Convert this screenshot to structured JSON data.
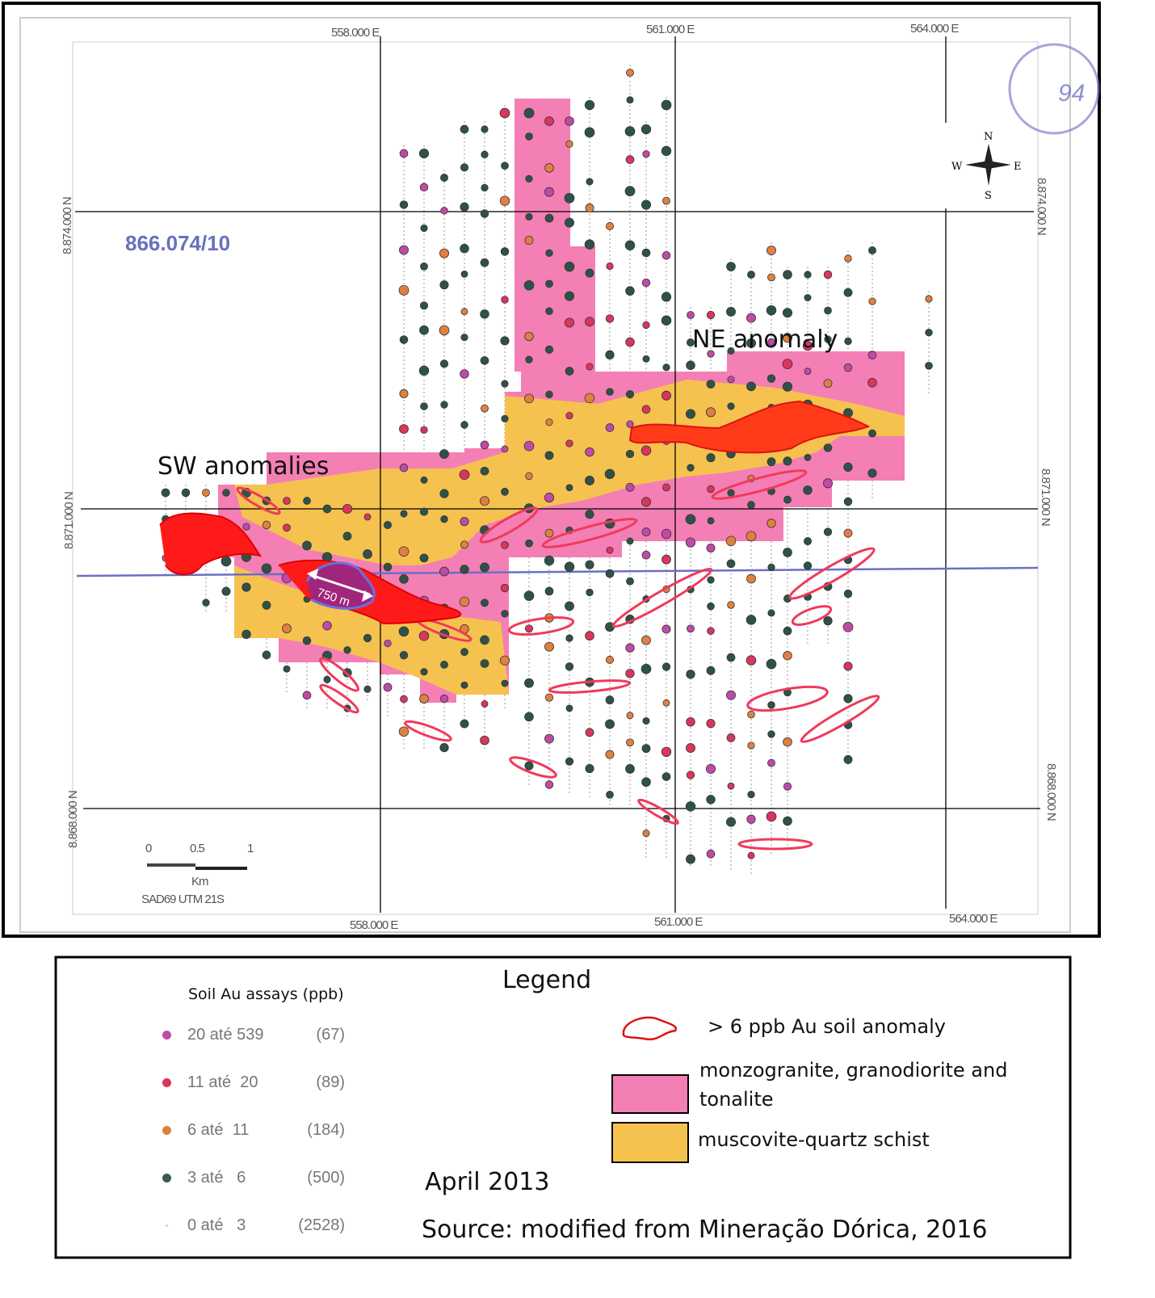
{
  "map": {
    "sheet_id": "866.074/10",
    "easting_labels": [
      "558.000 E",
      "561.000 E",
      "564.000 E"
    ],
    "northing_labels": [
      "8.874.000 N",
      "8.871.000 N",
      "8.868.000 N"
    ],
    "compass": {
      "n": "N",
      "s": "S",
      "e": "E",
      "w": "W"
    },
    "stamp_text": "94",
    "scale_ticks": [
      "0",
      "0.5",
      "1"
    ],
    "scale_unit": "Km",
    "datum": "SAD69 UTM 21S",
    "annotations": {
      "ne": "NE anomaly",
      "sw": "SW anomalies",
      "distance": "750 m"
    },
    "colors": {
      "granite": "#f47fb4",
      "schist": "#f6c24f",
      "anomaly": "#ff2a1a",
      "profile_line": "#6b6fc6"
    }
  },
  "legend": {
    "title": "Legend",
    "assay_title": "Soil Au assays (ppb)",
    "assays": [
      {
        "range": "20 até 539",
        "count": "(67)",
        "color": "#c04aa8"
      },
      {
        "range": "11 até  20",
        "count": "(89)",
        "color": "#d9365e"
      },
      {
        "range": "6 até  11",
        "count": "(184)",
        "color": "#e08040"
      },
      {
        "range": "3 até   6",
        "count": "(500)",
        "color": "#3b5a55"
      },
      {
        "range": "0 até   3",
        "count": "(2528)",
        "color": "#cccccc"
      }
    ],
    "anomaly_label": "> 6 ppb Au soil anomaly",
    "granite_label": "monzogranite, granodiorite and tonalite",
    "schist_label": "muscovite-quartz schist",
    "date": "April 2013",
    "source": "Source: modified from Mineração Dórica, 2016"
  }
}
